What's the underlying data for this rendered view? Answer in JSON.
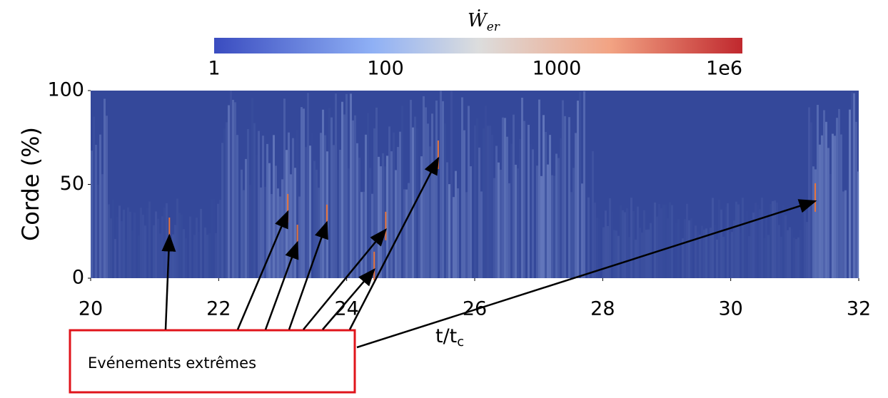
{
  "chart_data": {
    "type": "heatmap",
    "colorbar_label": {
      "symbol": "Ẇ",
      "subscript": "er"
    },
    "colorbar_ticks": [
      "1",
      "100",
      "1000",
      "1e6"
    ],
    "ylabel": "Corde (%)",
    "xlabel": {
      "base": "t/t",
      "subscript": "c"
    },
    "xlim": [
      20,
      32
    ],
    "xticks": [
      20,
      22,
      24,
      26,
      28,
      30,
      32
    ],
    "ylim": [
      0,
      100
    ],
    "yticks": [
      0,
      50,
      100
    ],
    "annotation": {
      "text": "Evénements extrêmes",
      "points": [
        {
          "x": 21.23,
          "y": 22.8
        },
        {
          "x": 23.08,
          "y": 35.4
        },
        {
          "x": 23.23,
          "y": 19.0
        },
        {
          "x": 23.69,
          "y": 29.7
        },
        {
          "x": 24.61,
          "y": 25.9
        },
        {
          "x": 24.43,
          "y": 4.6
        },
        {
          "x": 25.43,
          "y": 63.9
        },
        {
          "x": 31.32,
          "y": 41.1
        }
      ]
    }
  }
}
